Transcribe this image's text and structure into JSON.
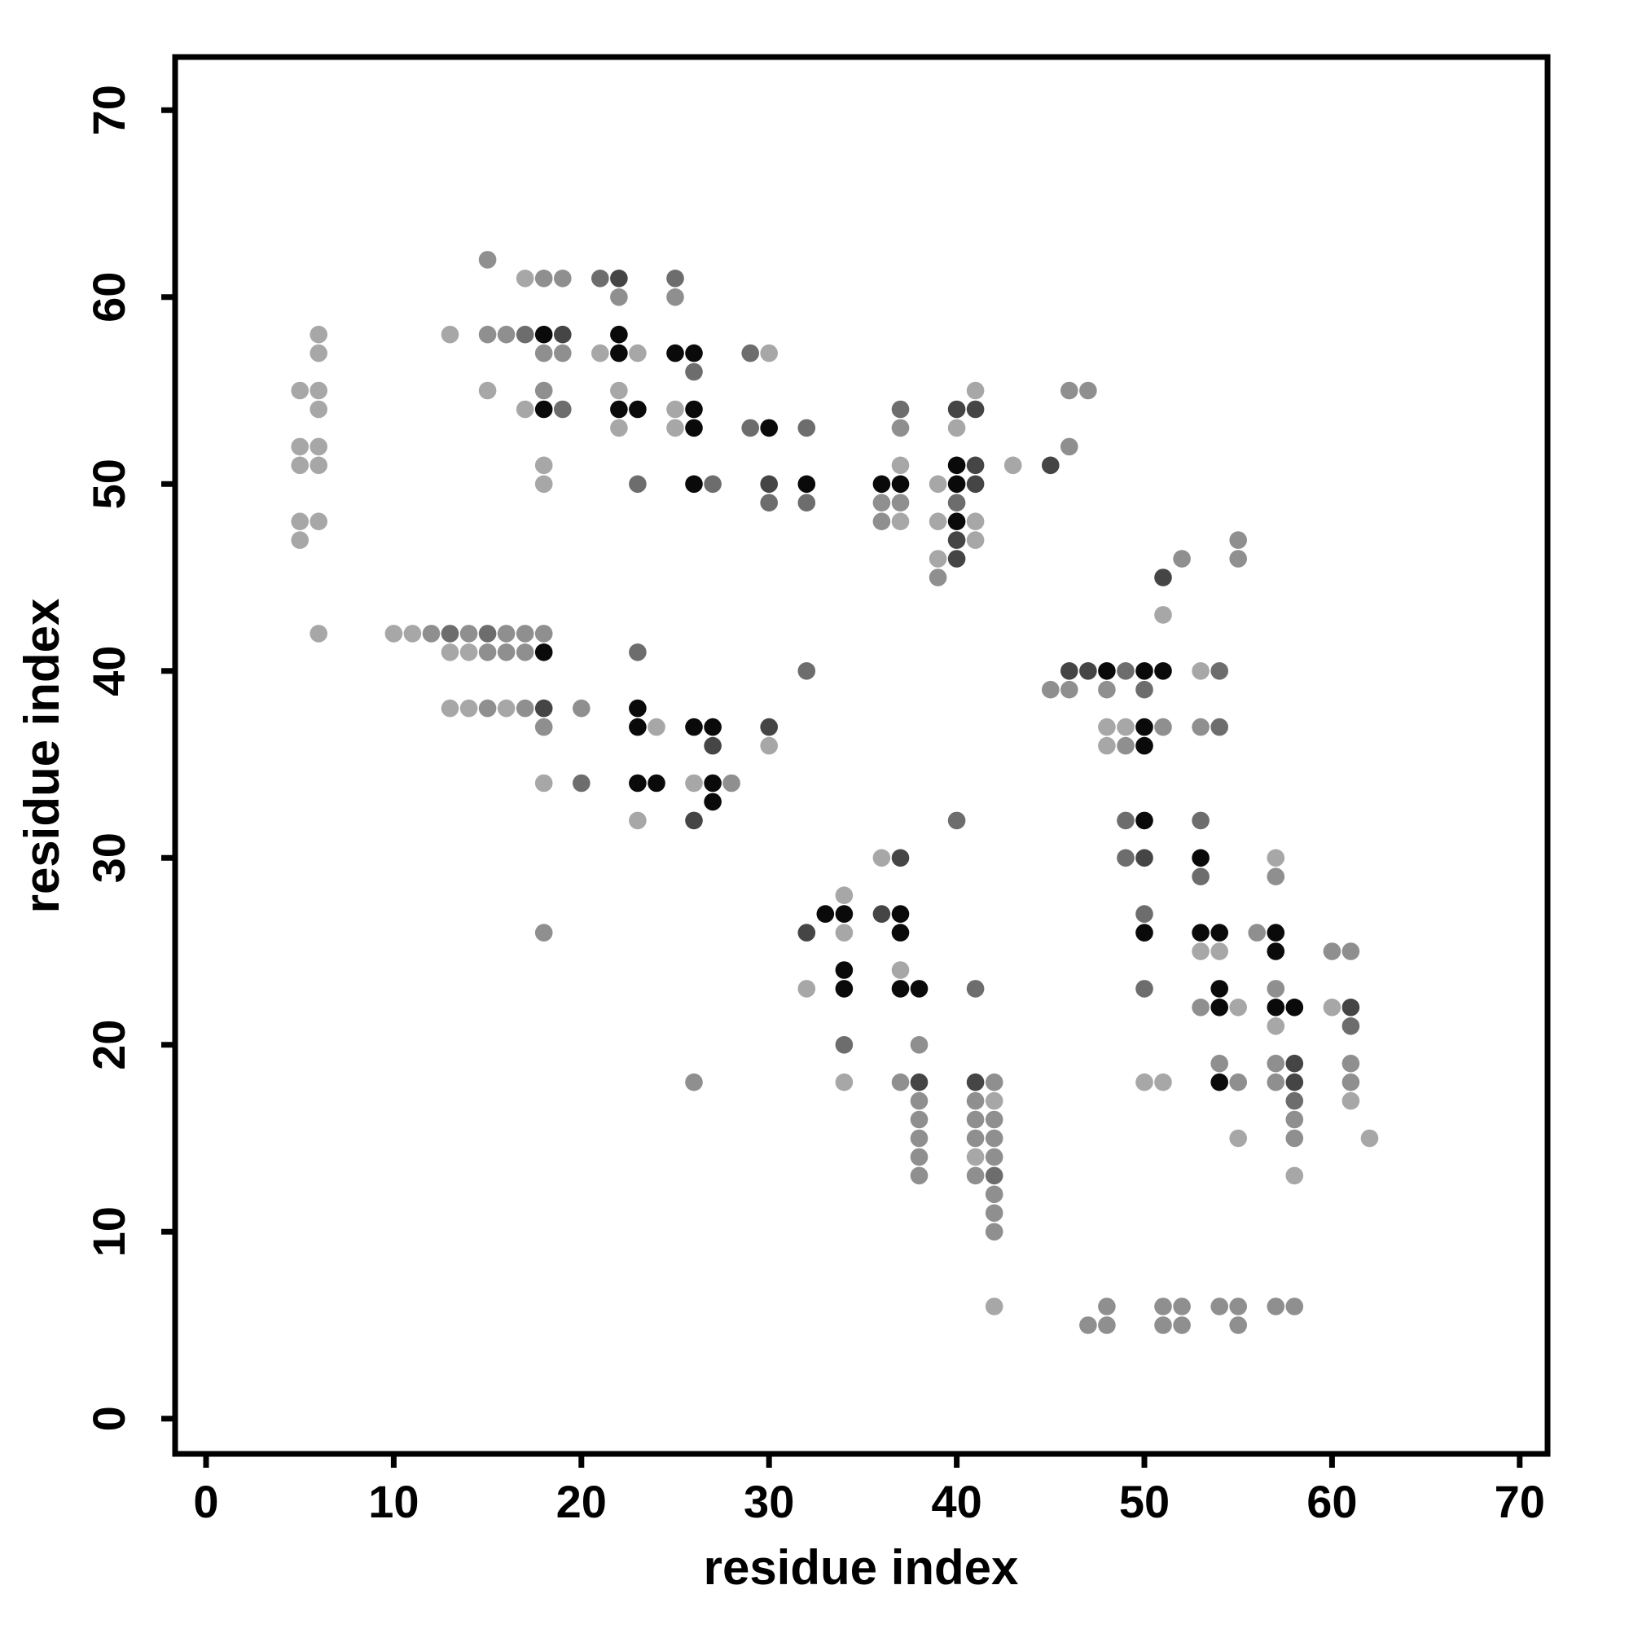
{
  "figure": {
    "background": "#ffffff",
    "plot_border_color": "#000000"
  },
  "chart_data": {
    "type": "scatter",
    "title": "",
    "xlabel": "residue index",
    "ylabel": "residue index",
    "xlim": [
      0,
      70
    ],
    "ylim": [
      0,
      70
    ],
    "xticks": [
      0,
      10,
      20,
      30,
      40,
      50,
      60,
      70
    ],
    "yticks": [
      0,
      10,
      20,
      30,
      40,
      50,
      60,
      70
    ],
    "grid": false,
    "legend_position": "none",
    "marker": "filled-circle",
    "shade_palette": [
      "#a7a7a7",
      "#8f8f8f",
      "#6d6d6d",
      "#454545",
      "#0a0a0a"
    ],
    "shade_meaning": "1=light gray (weak contact) to 5=black (strong contact)",
    "points": [
      [
        15,
        62,
        2
      ],
      [
        17,
        61,
        1
      ],
      [
        18,
        61,
        2
      ],
      [
        19,
        61,
        2
      ],
      [
        21,
        61,
        3
      ],
      [
        22,
        61,
        4
      ],
      [
        25,
        61,
        3
      ],
      [
        22,
        60,
        2
      ],
      [
        25,
        60,
        2
      ],
      [
        6,
        58,
        1
      ],
      [
        13,
        58,
        1
      ],
      [
        15,
        58,
        2
      ],
      [
        16,
        58,
        2
      ],
      [
        17,
        58,
        3
      ],
      [
        18,
        58,
        5
      ],
      [
        19,
        58,
        4
      ],
      [
        22,
        58,
        5
      ],
      [
        6,
        57,
        1
      ],
      [
        18,
        57,
        2
      ],
      [
        19,
        57,
        2
      ],
      [
        21,
        57,
        1
      ],
      [
        22,
        57,
        5
      ],
      [
        23,
        57,
        1
      ],
      [
        25,
        57,
        5
      ],
      [
        26,
        57,
        5
      ],
      [
        29,
        57,
        3
      ],
      [
        30,
        57,
        1
      ],
      [
        26,
        56,
        3
      ],
      [
        5,
        55,
        1
      ],
      [
        6,
        55,
        1
      ],
      [
        15,
        55,
        1
      ],
      [
        18,
        55,
        2
      ],
      [
        22,
        55,
        1
      ],
      [
        41,
        55,
        1
      ],
      [
        46,
        55,
        2
      ],
      [
        47,
        55,
        2
      ],
      [
        6,
        54,
        1
      ],
      [
        17,
        54,
        1
      ],
      [
        18,
        54,
        5
      ],
      [
        19,
        54,
        3
      ],
      [
        22,
        54,
        5
      ],
      [
        23,
        54,
        5
      ],
      [
        25,
        54,
        1
      ],
      [
        26,
        54,
        5
      ],
      [
        37,
        54,
        3
      ],
      [
        40,
        54,
        4
      ],
      [
        41,
        54,
        4
      ],
      [
        22,
        53,
        1
      ],
      [
        25,
        53,
        1
      ],
      [
        26,
        53,
        5
      ],
      [
        29,
        53,
        3
      ],
      [
        30,
        53,
        5
      ],
      [
        32,
        53,
        3
      ],
      [
        37,
        53,
        2
      ],
      [
        40,
        53,
        1
      ],
      [
        5,
        52,
        1
      ],
      [
        6,
        52,
        1
      ],
      [
        46,
        52,
        2
      ],
      [
        5,
        51,
        1
      ],
      [
        6,
        51,
        1
      ],
      [
        18,
        51,
        1
      ],
      [
        37,
        51,
        1
      ],
      [
        40,
        51,
        5
      ],
      [
        41,
        51,
        4
      ],
      [
        43,
        51,
        1
      ],
      [
        45,
        51,
        4
      ],
      [
        18,
        50,
        1
      ],
      [
        23,
        50,
        3
      ],
      [
        26,
        50,
        5
      ],
      [
        27,
        50,
        3
      ],
      [
        30,
        50,
        4
      ],
      [
        32,
        50,
        5
      ],
      [
        36,
        50,
        5
      ],
      [
        37,
        50,
        5
      ],
      [
        39,
        50,
        1
      ],
      [
        40,
        50,
        5
      ],
      [
        41,
        50,
        4
      ],
      [
        30,
        49,
        3
      ],
      [
        32,
        49,
        3
      ],
      [
        36,
        49,
        2
      ],
      [
        37,
        49,
        2
      ],
      [
        40,
        49,
        3
      ],
      [
        5,
        48,
        1
      ],
      [
        6,
        48,
        1
      ],
      [
        36,
        48,
        2
      ],
      [
        37,
        48,
        1
      ],
      [
        39,
        48,
        1
      ],
      [
        40,
        48,
        5
      ],
      [
        41,
        48,
        1
      ],
      [
        5,
        47,
        1
      ],
      [
        40,
        47,
        4
      ],
      [
        41,
        47,
        1
      ],
      [
        55,
        47,
        2
      ],
      [
        39,
        46,
        1
      ],
      [
        40,
        46,
        4
      ],
      [
        52,
        46,
        2
      ],
      [
        55,
        46,
        2
      ],
      [
        39,
        45,
        2
      ],
      [
        51,
        45,
        4
      ],
      [
        51,
        43,
        1
      ],
      [
        6,
        42,
        1
      ],
      [
        10,
        42,
        1
      ],
      [
        11,
        42,
        1
      ],
      [
        12,
        42,
        2
      ],
      [
        13,
        42,
        3
      ],
      [
        14,
        42,
        2
      ],
      [
        15,
        42,
        3
      ],
      [
        16,
        42,
        2
      ],
      [
        17,
        42,
        2
      ],
      [
        18,
        42,
        2
      ],
      [
        13,
        41,
        1
      ],
      [
        14,
        41,
        1
      ],
      [
        15,
        41,
        2
      ],
      [
        16,
        41,
        2
      ],
      [
        17,
        41,
        2
      ],
      [
        18,
        41,
        5
      ],
      [
        23,
        41,
        3
      ],
      [
        32,
        40,
        3
      ],
      [
        46,
        40,
        4
      ],
      [
        47,
        40,
        4
      ],
      [
        48,
        40,
        5
      ],
      [
        49,
        40,
        3
      ],
      [
        50,
        40,
        5
      ],
      [
        51,
        40,
        5
      ],
      [
        53,
        40,
        1
      ],
      [
        54,
        40,
        3
      ],
      [
        45,
        39,
        2
      ],
      [
        46,
        39,
        2
      ],
      [
        48,
        39,
        2
      ],
      [
        50,
        39,
        3
      ],
      [
        13,
        38,
        1
      ],
      [
        14,
        38,
        1
      ],
      [
        15,
        38,
        2
      ],
      [
        16,
        38,
        1
      ],
      [
        17,
        38,
        2
      ],
      [
        18,
        38,
        4
      ],
      [
        20,
        38,
        2
      ],
      [
        23,
        38,
        5
      ],
      [
        18,
        37,
        2
      ],
      [
        23,
        37,
        5
      ],
      [
        24,
        37,
        1
      ],
      [
        26,
        37,
        5
      ],
      [
        27,
        37,
        5
      ],
      [
        30,
        37,
        4
      ],
      [
        48,
        37,
        1
      ],
      [
        49,
        37,
        1
      ],
      [
        50,
        37,
        5
      ],
      [
        51,
        37,
        2
      ],
      [
        53,
        37,
        2
      ],
      [
        54,
        37,
        3
      ],
      [
        27,
        36,
        4
      ],
      [
        30,
        36,
        1
      ],
      [
        48,
        36,
        1
      ],
      [
        49,
        36,
        2
      ],
      [
        50,
        36,
        5
      ],
      [
        18,
        34,
        1
      ],
      [
        20,
        34,
        3
      ],
      [
        23,
        34,
        5
      ],
      [
        24,
        34,
        5
      ],
      [
        26,
        34,
        1
      ],
      [
        27,
        34,
        5
      ],
      [
        28,
        34,
        2
      ],
      [
        27,
        33,
        5
      ],
      [
        23,
        32,
        1
      ],
      [
        26,
        32,
        4
      ],
      [
        40,
        32,
        3
      ],
      [
        49,
        32,
        3
      ],
      [
        50,
        32,
        5
      ],
      [
        53,
        32,
        3
      ],
      [
        36,
        30,
        1
      ],
      [
        37,
        30,
        4
      ],
      [
        49,
        30,
        3
      ],
      [
        50,
        30,
        4
      ],
      [
        53,
        30,
        5
      ],
      [
        57,
        30,
        1
      ],
      [
        53,
        29,
        3
      ],
      [
        57,
        29,
        2
      ],
      [
        34,
        28,
        1
      ],
      [
        33,
        27,
        5
      ],
      [
        34,
        27,
        5
      ],
      [
        36,
        27,
        4
      ],
      [
        37,
        27,
        5
      ],
      [
        50,
        27,
        3
      ],
      [
        18,
        26,
        2
      ],
      [
        32,
        26,
        4
      ],
      [
        34,
        26,
        1
      ],
      [
        37,
        26,
        5
      ],
      [
        50,
        26,
        5
      ],
      [
        53,
        26,
        5
      ],
      [
        54,
        26,
        5
      ],
      [
        56,
        26,
        2
      ],
      [
        57,
        26,
        5
      ],
      [
        53,
        25,
        1
      ],
      [
        54,
        25,
        1
      ],
      [
        57,
        25,
        5
      ],
      [
        60,
        25,
        2
      ],
      [
        61,
        25,
        2
      ],
      [
        34,
        24,
        5
      ],
      [
        37,
        24,
        1
      ],
      [
        32,
        23,
        1
      ],
      [
        34,
        23,
        5
      ],
      [
        37,
        23,
        5
      ],
      [
        38,
        23,
        5
      ],
      [
        41,
        23,
        3
      ],
      [
        50,
        23,
        3
      ],
      [
        54,
        23,
        5
      ],
      [
        57,
        23,
        2
      ],
      [
        53,
        22,
        2
      ],
      [
        54,
        22,
        5
      ],
      [
        55,
        22,
        1
      ],
      [
        57,
        22,
        5
      ],
      [
        58,
        22,
        5
      ],
      [
        60,
        22,
        1
      ],
      [
        61,
        22,
        4
      ],
      [
        57,
        21,
        1
      ],
      [
        61,
        21,
        3
      ],
      [
        34,
        20,
        3
      ],
      [
        38,
        20,
        2
      ],
      [
        54,
        19,
        2
      ],
      [
        57,
        19,
        2
      ],
      [
        58,
        19,
        4
      ],
      [
        61,
        19,
        2
      ],
      [
        26,
        18,
        2
      ],
      [
        34,
        18,
        1
      ],
      [
        37,
        18,
        2
      ],
      [
        38,
        18,
        4
      ],
      [
        41,
        18,
        4
      ],
      [
        42,
        18,
        2
      ],
      [
        50,
        18,
        1
      ],
      [
        51,
        18,
        1
      ],
      [
        54,
        18,
        5
      ],
      [
        55,
        18,
        2
      ],
      [
        57,
        18,
        2
      ],
      [
        58,
        18,
        4
      ],
      [
        61,
        18,
        2
      ],
      [
        38,
        17,
        2
      ],
      [
        41,
        17,
        2
      ],
      [
        42,
        17,
        1
      ],
      [
        58,
        17,
        3
      ],
      [
        61,
        17,
        1
      ],
      [
        38,
        16,
        2
      ],
      [
        41,
        16,
        2
      ],
      [
        42,
        16,
        2
      ],
      [
        58,
        16,
        2
      ],
      [
        38,
        15,
        2
      ],
      [
        41,
        15,
        2
      ],
      [
        42,
        15,
        2
      ],
      [
        55,
        15,
        1
      ],
      [
        58,
        15,
        2
      ],
      [
        62,
        15,
        1
      ],
      [
        38,
        14,
        2
      ],
      [
        41,
        14,
        1
      ],
      [
        42,
        14,
        2
      ],
      [
        38,
        13,
        2
      ],
      [
        41,
        13,
        2
      ],
      [
        42,
        13,
        3
      ],
      [
        58,
        13,
        1
      ],
      [
        42,
        12,
        2
      ],
      [
        42,
        11,
        2
      ],
      [
        42,
        10,
        2
      ],
      [
        42,
        6,
        1
      ],
      [
        48,
        6,
        2
      ],
      [
        51,
        6,
        2
      ],
      [
        52,
        6,
        2
      ],
      [
        54,
        6,
        2
      ],
      [
        55,
        6,
        2
      ],
      [
        57,
        6,
        2
      ],
      [
        58,
        6,
        2
      ],
      [
        47,
        5,
        2
      ],
      [
        48,
        5,
        2
      ],
      [
        51,
        5,
        2
      ],
      [
        52,
        5,
        2
      ],
      [
        55,
        5,
        2
      ]
    ]
  }
}
